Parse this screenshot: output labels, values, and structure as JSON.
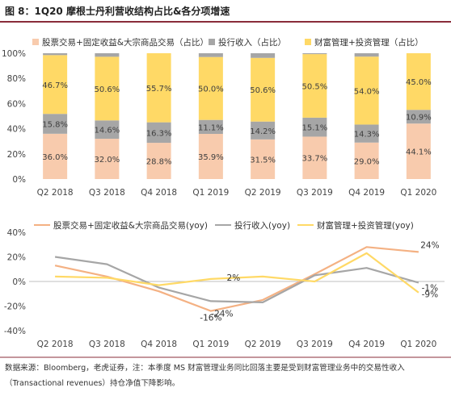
{
  "title": "图 8：1Q20 摩根士丹利营收结构占比&各分项增速",
  "source": "数据来源：Bloomberg，老虎证券，注：本季度 MS 财富管理业务同比回落主要是受到财富管理业务中的交易性收入（Transactional revenues）持仓净值下降影响。",
  "colors": {
    "equity": "#f8cbad",
    "ib": "#a6a6a6",
    "wealth": "#ffd966",
    "equity_line": "#f4b183",
    "ib_line": "#a6a6a6",
    "wealth_line": "#ffd966",
    "title_rule": "#8a2c3a"
  },
  "chart_data": [
    {
      "type": "bar",
      "stacked": true,
      "categories": [
        "Q2 2018",
        "Q3 2018",
        "Q4 2018",
        "Q1 2019",
        "Q2 2019",
        "Q3 2019",
        "Q4 2019",
        "Q1 2020"
      ],
      "series": [
        {
          "name": "股票交易+固定收益&大宗商品交易（占比）",
          "values": [
            36.0,
            32.0,
            28.8,
            35.9,
            31.5,
            33.7,
            29.0,
            44.1
          ],
          "labels": [
            "36.0%",
            "32.0%",
            "28.8%",
            "35.9%",
            "31.5%",
            "33.7%",
            "29.0%",
            "44.1%"
          ]
        },
        {
          "name": "投行收入（占比）",
          "values": [
            15.8,
            14.6,
            16.3,
            11.1,
            14.2,
            15.1,
            14.3,
            10.9
          ],
          "labels": [
            "15.8%",
            "14.6%",
            "16.3%",
            "11.1%",
            "14.2%",
            "15.1%",
            "14.3%",
            "10.9%"
          ]
        },
        {
          "name": "财富管理+投资管理（占比）",
          "values": [
            46.7,
            50.6,
            55.7,
            50.0,
            50.6,
            50.5,
            54.0,
            45.0
          ],
          "labels": [
            "46.7%",
            "50.6%",
            "55.7%",
            "50.0%",
            "50.6%",
            "50.5%",
            "54.0%",
            "45.0%"
          ]
        }
      ],
      "yticks": [
        "0%",
        "20%",
        "40%",
        "60%",
        "80%",
        "100%"
      ],
      "ylim": [
        0,
        100
      ],
      "legend": "top"
    },
    {
      "type": "line",
      "categories": [
        "Q2 2018",
        "Q3 2018",
        "Q4 2018",
        "Q1 2019",
        "Q2 2019",
        "Q3 2019",
        "Q4 2019",
        "Q1 2020"
      ],
      "series": [
        {
          "name": "股票交易+固定收益&大宗商品交易(yoy)",
          "values": [
            13,
            4,
            -8,
            -24,
            -15,
            6,
            28,
            24
          ]
        },
        {
          "name": "投行收入(yoy)",
          "values": [
            20,
            14,
            -5,
            -16,
            -17,
            5,
            11,
            -1
          ]
        },
        {
          "name": "财富管理+投资管理(yoy)",
          "values": [
            4,
            3,
            -3,
            2,
            4,
            0,
            23,
            -9
          ]
        }
      ],
      "annotations": [
        "24%",
        "-1%",
        "-9%",
        "2%",
        "-24%",
        "-16%"
      ],
      "yticks": [
        "-40%",
        "-20%",
        "0%",
        "20%",
        "40%"
      ],
      "ylim": [
        -40,
        40
      ],
      "legend": "top"
    }
  ]
}
